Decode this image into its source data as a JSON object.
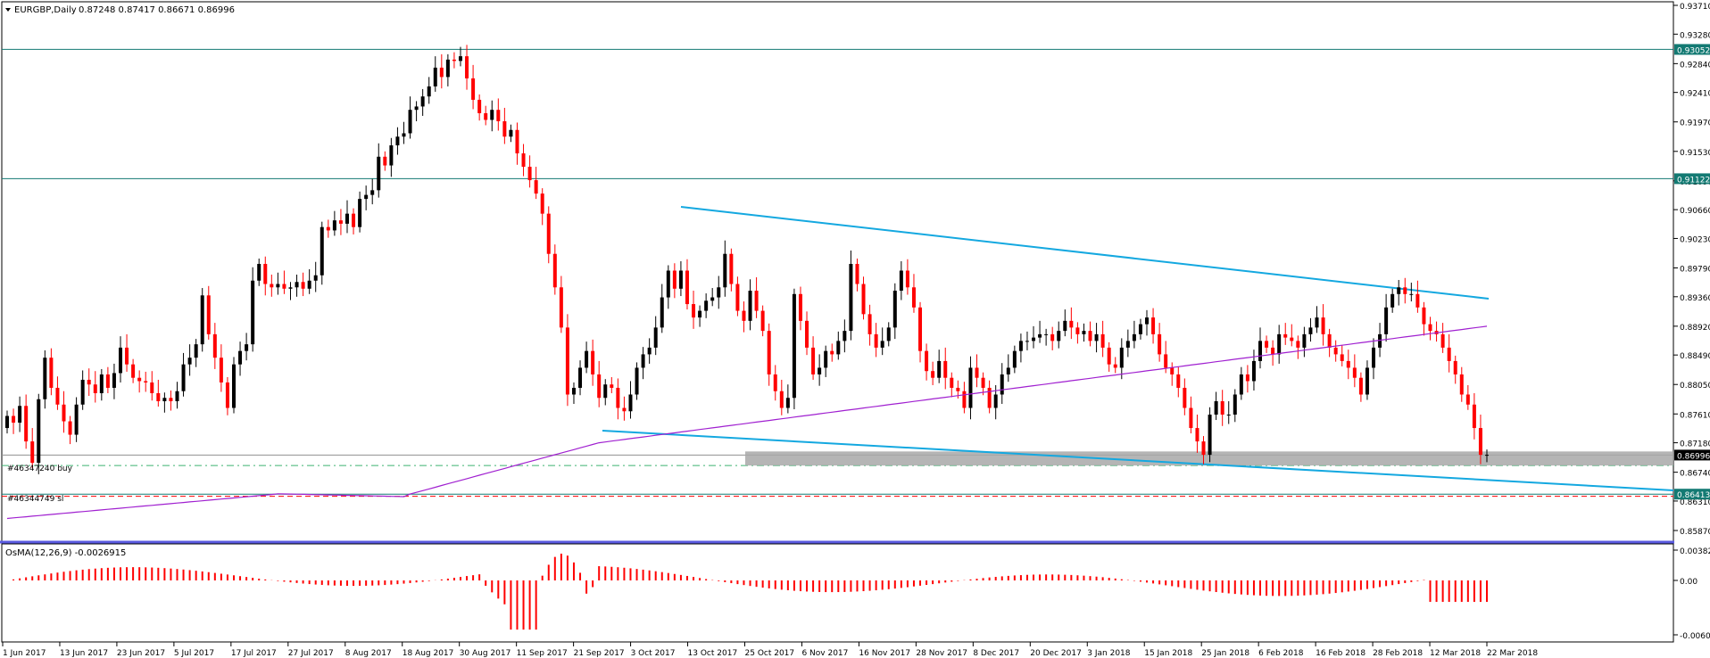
{
  "main_header": {
    "collapse_icon": "triangle-down-icon",
    "symbol": "EURGBP,Daily",
    "ohlc": "0.87248 0.87417 0.86671 0.86996"
  },
  "osma_header": "OsMA(12,26,9) -0.0026915",
  "price_axis": [
    "0.93710",
    "0.93280",
    "0.92840",
    "0.92410",
    "0.91970",
    "0.91530",
    "0.91090",
    "0.90660",
    "0.90230",
    "0.89790",
    "0.89360",
    "0.88920",
    "0.88490",
    "0.88050",
    "0.87610",
    "0.87180",
    "0.86740",
    "0.86310",
    "0.85870"
  ],
  "price_markers": [
    {
      "label": "0.93052",
      "color": "#137a73"
    },
    {
      "label": "0.91122",
      "color": "#137a73"
    },
    {
      "label": "0.86996",
      "color": "#000000"
    },
    {
      "label": "0.86413",
      "color": "#137a73"
    }
  ],
  "osma_axis": [
    "0.003824",
    "0.00",
    "-0.006082"
  ],
  "date_axis": [
    "1 Jun 2017",
    "13 Jun 2017",
    "23 Jun 2017",
    "5 Jul 2017",
    "17 Jul 2017",
    "27 Jul 2017",
    "8 Aug 2017",
    "18 Aug 2017",
    "30 Aug 2017",
    "11 Sep 2017",
    "21 Sep 2017",
    "3 Oct 2017",
    "13 Oct 2017",
    "25 Oct 2017",
    "6 Nov 2017",
    "16 Nov 2017",
    "28 Nov 2017",
    "8 Dec 2017",
    "20 Dec 2017",
    "3 Jan 2018",
    "15 Jan 2018",
    "25 Jan 2018",
    "6 Feb 2018",
    "16 Feb 2018",
    "28 Feb 2018",
    "12 Mar 2018",
    "22 Mar 2018"
  ],
  "order_labels": [
    "#46347240 buy",
    "#46344749 sl"
  ],
  "colors": {
    "bull": "#000000",
    "bear": "#ff0000",
    "ma": "#a020d0",
    "channel": "#14a8e0",
    "hline": "#137a73",
    "zone": "#a8a8a8",
    "osma": "#ff0000",
    "border": "#5a5ae0"
  },
  "chart_data": {
    "type": "candlestick",
    "symbol": "EURGBP",
    "timeframe": "Daily",
    "price_range": [
      0.8587,
      0.9371
    ],
    "horizontal_levels": [
      0.93052,
      0.91122,
      0.86996,
      0.86413
    ],
    "support_zone": [
      0.8684,
      0.8705
    ],
    "last_close": 0.86996
  }
}
